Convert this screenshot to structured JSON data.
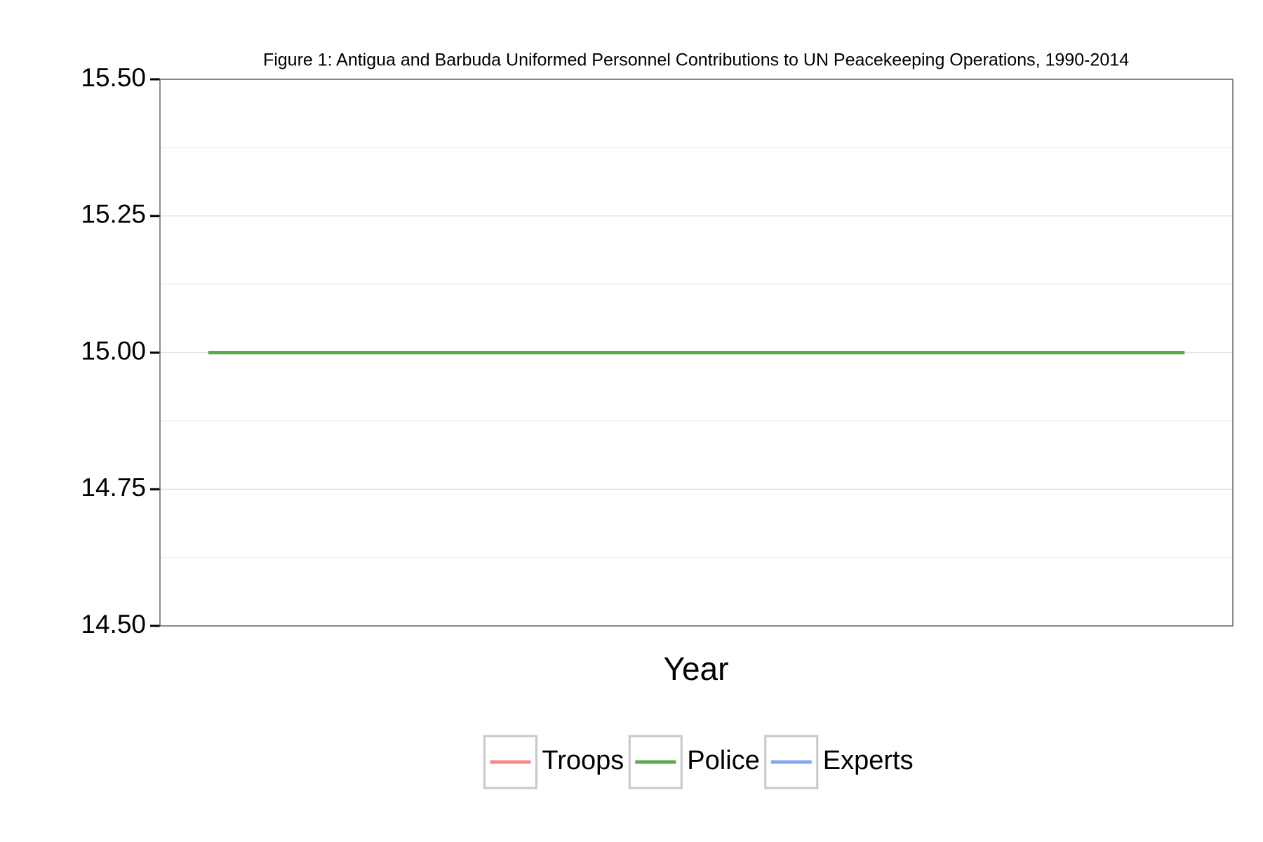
{
  "chart_data": {
    "type": "line",
    "title": "Figure 1: Antigua and Barbuda Uniformed Personnel Contributions to UN Peacekeeping Operations, 1990-2014",
    "x_label": "Year",
    "categories": [
      null,
      null
    ],
    "series": [
      {
        "name": "Troops",
        "color": "#f08c87",
        "values": [
          null,
          null
        ]
      },
      {
        "name": "Police",
        "color": "#5aaa4a",
        "values": [
          15,
          15
        ]
      },
      {
        "name": "Experts",
        "color": "#82a8f4",
        "values": [
          null,
          null
        ]
      }
    ],
    "ylim": [
      14.5,
      15.5
    ],
    "yticks": [
      {
        "value": 14.5,
        "label": "14.50"
      },
      14.75,
      {
        "value": 15,
        "label": "15.00"
      },
      15.25,
      {
        "value": 15.5,
        "label": "15.50"
      }
    ],
    "grid": true,
    "legend": "bottom"
  }
}
